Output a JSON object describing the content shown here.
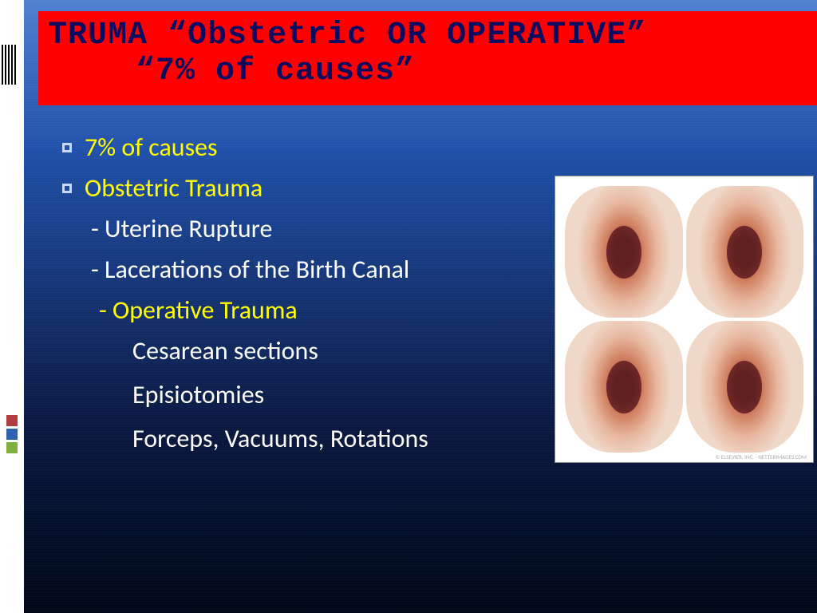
{
  "title": {
    "line1": "TRUMA “Obstetric OR OPERATIVE”",
    "line2": "“7% of causes”",
    "bg_color": "#ff0000",
    "text_color": "#0a0a60"
  },
  "bullets": {
    "item1": "7%  of causes",
    "item2": "Obstetric Trauma",
    "sub1": "- Uterine Rupture",
    "sub2": "- Lacerations of the Birth Canal",
    "item3": " - Operative Trauma",
    "subop1": "Cesarean sections",
    "subop2": "Episiotomies",
    "subop3": "Forceps, Vacuums, Rotations"
  },
  "colors": {
    "highlight": "#ffff00",
    "body_text": "#ffffff",
    "bullet_border": "#c8d8ff",
    "bg_gradient_top": "#5080d0",
    "bg_gradient_bottom": "#000818"
  },
  "marks": {
    "c1": "#b04040",
    "c2": "#3060b0",
    "c3": "#80b040"
  },
  "image": {
    "watermark": "© ELSEVIER, INC. - NETTERIMAGES.COM"
  }
}
